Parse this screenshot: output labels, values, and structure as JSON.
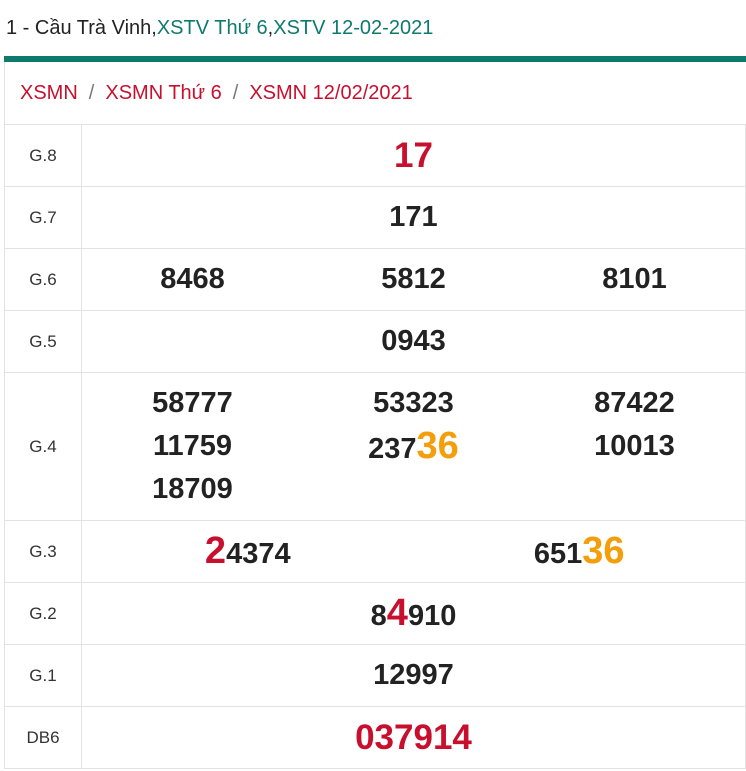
{
  "header": {
    "prefix": "1 - Cầu Trà Vinh, ",
    "link1": "XSTV Thứ 6",
    "comma": ", ",
    "link2": "XSTV 12-02-2021"
  },
  "breadcrumb": {
    "items": [
      "XSMN",
      "XSMN Thứ 6",
      "XSMN 12/02/2021"
    ],
    "separator": "/"
  },
  "results": {
    "g8": {
      "label": "G.8",
      "value": "17"
    },
    "g7": {
      "label": "G.7",
      "value": "171"
    },
    "g6": {
      "label": "G.6",
      "values": [
        "8468",
        "5812",
        "8101"
      ]
    },
    "g5": {
      "label": "G.5",
      "value": "0943"
    },
    "g4": {
      "label": "G.4",
      "col1": [
        "58777",
        "11759",
        "18709"
      ],
      "col2": [
        "53323"
      ],
      "col2_highlight": {
        "prefix": "237",
        "highlight": "36"
      },
      "col3": [
        "87422",
        "10013"
      ]
    },
    "g3": {
      "label": "G.3",
      "v1": {
        "highlight": "2",
        "rest": "4374"
      },
      "v2": {
        "prefix": "651",
        "highlight": "36"
      }
    },
    "g2": {
      "label": "G.2",
      "prefix": "8",
      "highlight": "4",
      "rest": "910"
    },
    "g1": {
      "label": "G.1",
      "value": "12997"
    },
    "db": {
      "label": "DB6",
      "value": "037914"
    }
  },
  "colors": {
    "teal": "#0e7a6e",
    "red": "#c8102e",
    "orange": "#f59e0b"
  }
}
